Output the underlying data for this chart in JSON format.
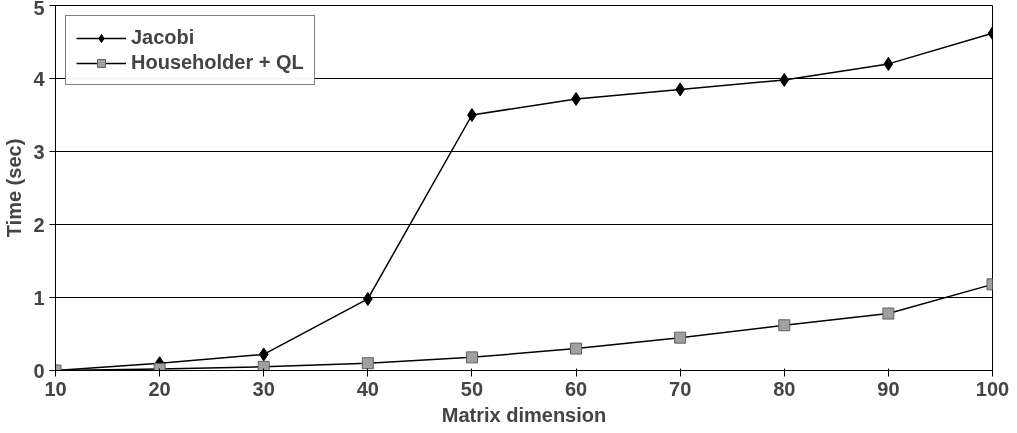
{
  "chart_data": {
    "type": "line",
    "xlabel": "Matrix dimension",
    "ylabel": "Time (sec)",
    "x": [
      10,
      20,
      30,
      40,
      50,
      60,
      70,
      80,
      90,
      100
    ],
    "series": [
      {
        "name": "Jacobi",
        "color": "#000000",
        "marker": "diamond",
        "values": [
          0,
          0.1,
          0.22,
          0.98,
          3.5,
          3.72,
          3.85,
          3.98,
          4.2,
          4.62
        ]
      },
      {
        "name": "Householder + QL",
        "color": "#a0a0a0",
        "marker": "square",
        "values": [
          0,
          0.02,
          0.05,
          0.1,
          0.18,
          0.3,
          0.45,
          0.62,
          0.78,
          1.18
        ]
      }
    ],
    "xlim": [
      10,
      100
    ],
    "ylim": [
      0,
      5
    ],
    "xticks": [
      10,
      20,
      30,
      40,
      50,
      60,
      70,
      80,
      90,
      100
    ],
    "yticks": [
      0,
      1,
      2,
      3,
      4,
      5
    ],
    "grid": "y",
    "legend": "top left",
    "line_style": "solid"
  }
}
